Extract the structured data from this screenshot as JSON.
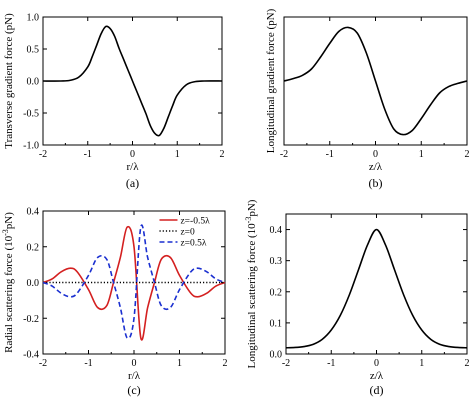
{
  "chart_data": [
    {
      "id": "a",
      "type": "line",
      "panel_label": "(a)",
      "xlabel": "r/λ",
      "ylabel": "Transverse gradient force (pN)",
      "xlim": [
        -2,
        2
      ],
      "ylim": [
        -1.0,
        1.0
      ],
      "xticks": [
        -2,
        -1,
        0,
        1,
        2
      ],
      "yticks": [
        -1.0,
        -0.5,
        0.0,
        0.5,
        1.0
      ],
      "yticklabels": [
        "-1.0",
        "-0.5",
        "0.0",
        "0.5",
        "1.0"
      ],
      "series": [
        {
          "color": "#000000",
          "dash": "solid",
          "x": [
            -2.0,
            -1.6,
            -1.4,
            -1.2,
            -1.0,
            -0.9,
            -0.8,
            -0.7,
            -0.6,
            -0.5,
            -0.4,
            -0.3,
            -0.2,
            -0.1,
            0.0,
            0.1,
            0.2,
            0.3,
            0.4,
            0.5,
            0.6,
            0.7,
            0.8,
            0.9,
            1.0,
            1.2,
            1.4,
            1.6,
            2.0
          ],
          "y": [
            0.0,
            0.0,
            0.01,
            0.06,
            0.22,
            0.38,
            0.56,
            0.74,
            0.85,
            0.82,
            0.7,
            0.51,
            0.34,
            0.17,
            0.0,
            -0.17,
            -0.34,
            -0.51,
            -0.7,
            -0.82,
            -0.85,
            -0.74,
            -0.56,
            -0.38,
            -0.22,
            -0.06,
            -0.01,
            0.0,
            0.0
          ]
        }
      ]
    },
    {
      "id": "b",
      "type": "line",
      "panel_label": "(b)",
      "xlabel": "z/λ",
      "ylabel": "Longitudinal gradient force (pN)",
      "xlim": [
        -2,
        2
      ],
      "ylim": [
        -0.8,
        0.8
      ],
      "xticks": [
        -2,
        -1,
        0,
        1,
        2
      ],
      "yticks": [],
      "yticklabels": [],
      "series": [
        {
          "color": "#000000",
          "dash": "solid",
          "x": [
            -2.0,
            -1.8,
            -1.6,
            -1.4,
            -1.2,
            -1.0,
            -0.8,
            -0.6,
            -0.4,
            -0.2,
            0.0,
            0.2,
            0.4,
            0.6,
            0.8,
            1.0,
            1.2,
            1.4,
            1.6,
            1.8,
            2.0
          ],
          "y": [
            0.0,
            0.03,
            0.07,
            0.15,
            0.3,
            0.47,
            0.62,
            0.67,
            0.6,
            0.35,
            0.0,
            -0.35,
            -0.6,
            -0.67,
            -0.62,
            -0.47,
            -0.3,
            -0.15,
            -0.07,
            -0.03,
            0.0
          ]
        }
      ]
    },
    {
      "id": "c",
      "type": "line",
      "panel_label": "(c)",
      "xlabel": "r/λ",
      "ylabel": "Radial scattering force (10",
      "ylabel_sup": "-3",
      "ylabel_tail": "pN)",
      "xlim": [
        -2,
        2
      ],
      "ylim": [
        -0.4,
        0.4
      ],
      "xticks": [
        -2,
        -1,
        0,
        1,
        2
      ],
      "yticks": [
        -0.4,
        -0.2,
        0.0,
        0.2,
        0.4
      ],
      "yticklabels": [
        "-0.4",
        "-0.2",
        "0.0",
        "0.2",
        "0.4"
      ],
      "legend_position": "top-right",
      "series": [
        {
          "name": "z=-0.5λ",
          "color": "#d42020",
          "dash": "solid",
          "x": [
            -2.0,
            -1.8,
            -1.6,
            -1.4,
            -1.25,
            -1.0,
            -0.8,
            -0.6,
            -0.45,
            -0.3,
            -0.15,
            0.0,
            0.15,
            0.3,
            0.45,
            0.6,
            0.8,
            1.0,
            1.25,
            1.4,
            1.6,
            1.8,
            2.0
          ],
          "y": [
            0.0,
            0.02,
            0.06,
            0.08,
            0.06,
            -0.04,
            -0.14,
            -0.13,
            0.0,
            0.14,
            0.31,
            0.2,
            -0.31,
            -0.14,
            0.0,
            0.13,
            0.14,
            0.04,
            -0.06,
            -0.08,
            -0.06,
            -0.02,
            0.0
          ]
        },
        {
          "name": "z=0",
          "color": "#000000",
          "dash": "dotted",
          "x": [
            -2.0,
            2.0
          ],
          "y": [
            0.0,
            0.0
          ]
        },
        {
          "name": "z=0.5λ",
          "color": "#1a2fd0",
          "dash": "dashed",
          "x": [
            -2.0,
            -1.8,
            -1.6,
            -1.4,
            -1.25,
            -1.0,
            -0.8,
            -0.6,
            -0.45,
            -0.3,
            -0.15,
            0.0,
            0.15,
            0.3,
            0.45,
            0.6,
            0.8,
            1.0,
            1.25,
            1.4,
            1.6,
            1.8,
            2.0
          ],
          "y": [
            0.0,
            -0.02,
            -0.06,
            -0.08,
            -0.06,
            0.04,
            0.14,
            0.13,
            0.0,
            -0.14,
            -0.31,
            -0.2,
            0.31,
            0.14,
            0.0,
            -0.13,
            -0.14,
            -0.04,
            0.06,
            0.08,
            0.06,
            0.02,
            0.0
          ]
        }
      ]
    },
    {
      "id": "d",
      "type": "line",
      "panel_label": "(d)",
      "xlabel": "z/λ",
      "ylabel": "Longitudinal scattering force (10",
      "ylabel_sup": "-3",
      "ylabel_tail": "pN)",
      "xlim": [
        -2,
        2
      ],
      "ylim": [
        0.0,
        0.45
      ],
      "xticks": [
        -2,
        -1,
        0,
        1,
        2
      ],
      "yticks": [
        0.0,
        0.1,
        0.2,
        0.3,
        0.4
      ],
      "yticklabels": [
        "0.0",
        "0.1",
        "0.2",
        "0.3",
        "0.4"
      ],
      "series": [
        {
          "color": "#000000",
          "dash": "solid",
          "x": [
            -2.0,
            -1.8,
            -1.6,
            -1.4,
            -1.2,
            -1.0,
            -0.8,
            -0.6,
            -0.4,
            -0.2,
            0.0,
            0.2,
            0.4,
            0.6,
            0.8,
            1.0,
            1.2,
            1.4,
            1.6,
            1.8,
            2.0
          ],
          "y": [
            0.02,
            0.021,
            0.024,
            0.031,
            0.047,
            0.077,
            0.124,
            0.19,
            0.27,
            0.35,
            0.4,
            0.35,
            0.27,
            0.19,
            0.124,
            0.077,
            0.047,
            0.031,
            0.024,
            0.021,
            0.02
          ]
        }
      ]
    }
  ]
}
